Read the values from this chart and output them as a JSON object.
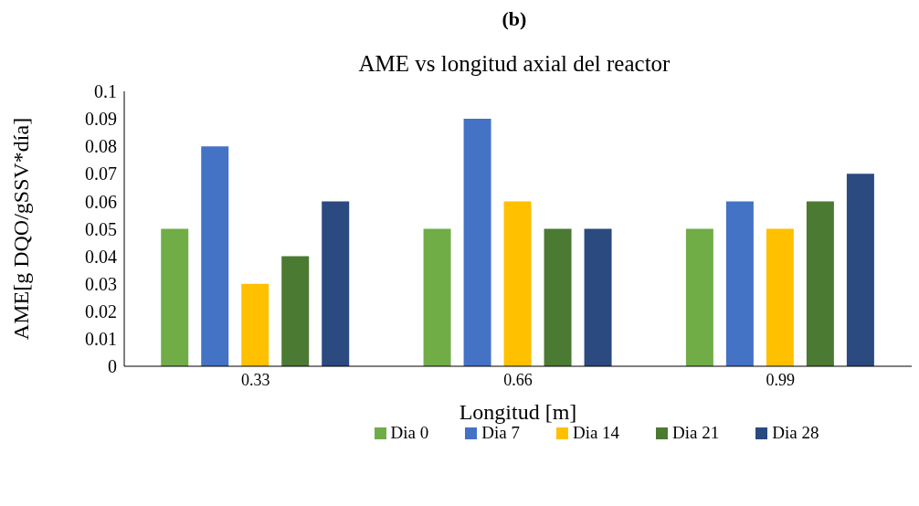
{
  "chart_data": {
    "type": "bar",
    "annotations": [
      "(b)"
    ],
    "title": "AME vs longitud axial del reactor",
    "xlabel": "Longitud [m]",
    "ylabel": "AME[g DQO/gSSV*día]",
    "categories": [
      "0.33",
      "0.66",
      "0.99"
    ],
    "series": [
      {
        "name": "Dia 0",
        "color": "#70ad47",
        "values": [
          0.05,
          0.05,
          0.05
        ]
      },
      {
        "name": "Dia 7",
        "color": "#4472c4",
        "values": [
          0.08,
          0.09,
          0.06
        ]
      },
      {
        "name": "Dia 14",
        "color": "#ffc000",
        "values": [
          0.03,
          0.06,
          0.05
        ]
      },
      {
        "name": "Dia 21",
        "color": "#4b7a32",
        "values": [
          0.04,
          0.05,
          0.06
        ]
      },
      {
        "name": "Dia 28",
        "color": "#2a4a80",
        "values": [
          0.06,
          0.05,
          0.07
        ]
      }
    ],
    "ylim": [
      0,
      0.1
    ],
    "yticks": [
      0,
      0.01,
      0.02,
      0.03,
      0.04,
      0.05,
      0.06,
      0.07,
      0.08,
      0.09,
      0.1
    ],
    "grid": false,
    "legend": "bottom"
  }
}
